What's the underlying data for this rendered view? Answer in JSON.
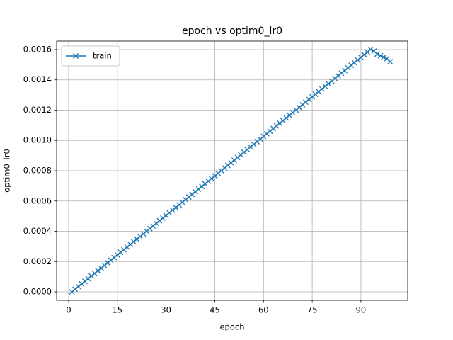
{
  "chart_data": {
    "type": "line",
    "title": "epoch vs optim0_lr0",
    "x_label": "epoch",
    "y_label": "optim0_lr0",
    "x": [
      1,
      2,
      3,
      4,
      5,
      6,
      7,
      8,
      9,
      10,
      11,
      12,
      13,
      14,
      15,
      16,
      17,
      18,
      19,
      20,
      21,
      22,
      23,
      24,
      25,
      26,
      27,
      28,
      29,
      30,
      31,
      32,
      33,
      34,
      35,
      36,
      37,
      38,
      39,
      40,
      41,
      42,
      43,
      44,
      45,
      46,
      47,
      48,
      49,
      50,
      51,
      52,
      53,
      54,
      55,
      56,
      57,
      58,
      59,
      60,
      61,
      62,
      63,
      64,
      65,
      66,
      67,
      68,
      69,
      70,
      71,
      72,
      73,
      74,
      75,
      76,
      77,
      78,
      79,
      80,
      81,
      82,
      83,
      84,
      85,
      86,
      87,
      88,
      89,
      90,
      91,
      92,
      93,
      94,
      95,
      96,
      97,
      98,
      99
    ],
    "series": [
      {
        "name": "train",
        "color": "#1f77b4",
        "marker": "x",
        "values": [
          0,
          1.74e-05,
          3.48e-05,
          5.22e-05,
          6.96e-05,
          8.7e-05,
          0.0001044,
          0.0001218,
          0.0001392,
          0.0001566,
          0.000174,
          0.0001914,
          0.0002088,
          0.0002262,
          0.0002436,
          0.000261,
          0.0002784,
          0.0002958,
          0.0003132,
          0.0003306,
          0.000348,
          0.0003654,
          0.0003828,
          0.0004002,
          0.0004176,
          0.000435,
          0.0004524,
          0.0004698,
          0.0004872,
          0.0005046,
          0.000522,
          0.0005394,
          0.0005568,
          0.0005742,
          0.0005916,
          0.000609,
          0.0006264,
          0.0006438,
          0.0006612,
          0.0006786,
          0.000696,
          0.0007134,
          0.0007308,
          0.0007482,
          0.0007656,
          0.000783,
          0.0008004,
          0.0008178,
          0.0008352,
          0.0008526,
          0.00087,
          0.0008874,
          0.0009048,
          0.0009222,
          0.0009396,
          0.000957,
          0.0009744,
          0.0009918,
          0.0010092,
          0.0010266,
          0.001044,
          0.0010614,
          0.0010788,
          0.0010962,
          0.0011136,
          0.001131,
          0.0011484,
          0.0011658,
          0.0011832,
          0.0012006,
          0.001218,
          0.0012354,
          0.0012528,
          0.0012702,
          0.0012876,
          0.001305,
          0.0013224,
          0.0013398,
          0.0013572,
          0.0013746,
          0.001392,
          0.0014094,
          0.0014268,
          0.0014442,
          0.0014616,
          0.001479,
          0.0014964,
          0.0015138,
          0.0015312,
          0.0015486,
          0.001566,
          0.0015834,
          0.0016008,
          0.00159,
          0.00157,
          0.00156,
          0.00155,
          0.00154,
          0.00152
        ]
      }
    ],
    "xlim": [
      -3.7,
      104.4
    ],
    "ylim": [
      -5.6e-05,
      0.001656
    ],
    "xticks": [
      0,
      15,
      30,
      45,
      60,
      75,
      90
    ],
    "yticks": [
      {
        "value": 0,
        "label": "0.0000"
      },
      {
        "value": 0.0002,
        "label": "0.0002"
      },
      {
        "value": 0.0004,
        "label": "0.0004"
      },
      {
        "value": 0.0006,
        "label": "0.0006"
      },
      {
        "value": 0.0008,
        "label": "0.0008"
      },
      {
        "value": 0.001,
        "label": "0.0010"
      },
      {
        "value": 0.0012,
        "label": "0.0012"
      },
      {
        "value": 0.0014,
        "label": "0.0014"
      },
      {
        "value": 0.0016,
        "label": "0.0016"
      }
    ],
    "grid": true,
    "legend": "upper-left"
  }
}
